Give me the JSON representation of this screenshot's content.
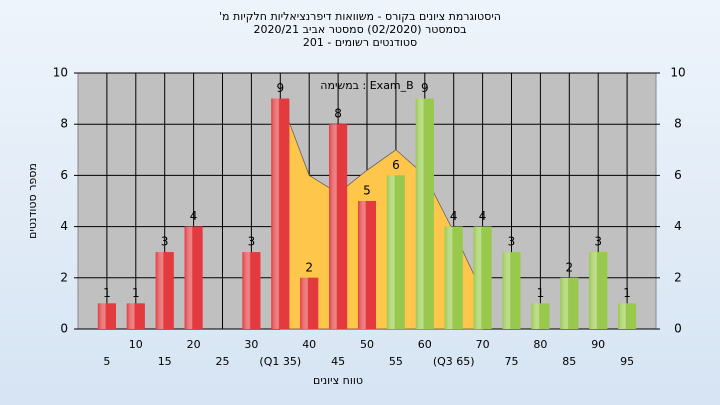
{
  "chart_data": {
    "type": "bar",
    "title": "'היסטוגרמת ציונים בקורס - משוואות דיפרנציאליות חלקיות מ",
    "subtitle": "בסמסטר  (02/2020)  סמסטר אביב 2020/21",
    "subtitle2": "סטודנטים רשומים - 201",
    "annotation": "במשימה : Exam_B",
    "y_label": "מספר סטודנטים",
    "x_label": "טווח ציונים",
    "categories": [
      "5",
      "10",
      "15",
      "20",
      "25",
      "30",
      "(Q1 35)",
      "40",
      "45",
      "50",
      "55",
      "60",
      "(Q3 65)",
      "70",
      "75",
      "80",
      "85",
      "90",
      "95"
    ],
    "values": [
      1,
      1,
      3,
      4,
      null,
      3,
      9,
      2,
      8,
      5,
      6,
      9,
      4,
      4,
      3,
      1,
      2,
      3,
      1
    ],
    "colors": [
      "#e23a3e",
      "#e23a3e",
      "#e23a3e",
      "#e23a3e",
      "#e23a3e",
      "#e23a3e",
      "#e23a3e",
      "#e23a3e",
      "#e23a3e",
      "#e23a3e",
      "#98c94c",
      "#98c94c",
      "#98c94c",
      "#98c94c",
      "#98c94c",
      "#98c94c",
      "#98c94c",
      "#98c94c",
      "#98c94c"
    ],
    "area_values": [
      null,
      null,
      null,
      null,
      null,
      null,
      9,
      6,
      5.3,
      6.2,
      7,
      6,
      3.8,
      1.4,
      null,
      null,
      null,
      null,
      null
    ],
    "area_color": "#ffc64c",
    "ylim": [
      0,
      10
    ],
    "yticks": [
      0,
      2,
      4,
      6,
      8,
      10
    ],
    "y2lim": [
      0,
      10
    ],
    "y2ticks": [
      0,
      2,
      4,
      6,
      8,
      10
    ],
    "grid": true
  }
}
